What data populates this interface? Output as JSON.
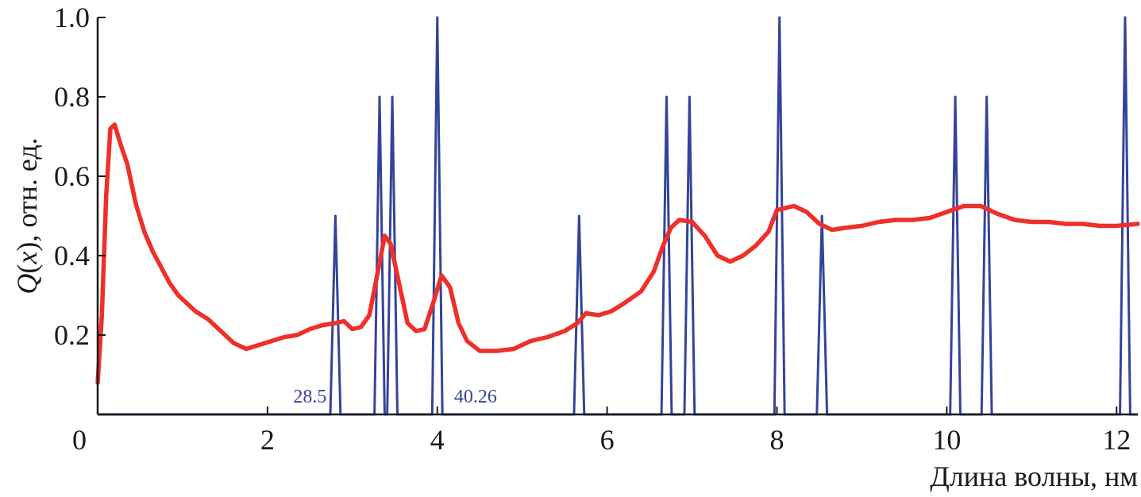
{
  "colors": {
    "q_curve": "#ee2f2a",
    "peaks": "#34439a",
    "axis": "#1a1a1a"
  },
  "chart_data": {
    "type": "line",
    "xlabel": "Длина волны, нм",
    "ylabel_prefix": "Q",
    "ylabel_var": "x",
    "ylabel_suffix": ", отн. ед.",
    "xlim": [
      0,
      12.25
    ],
    "ylim": [
      0,
      1.0
    ],
    "x_ticks": [
      0,
      2,
      4,
      6,
      8,
      10,
      12
    ],
    "x_tick_labels": [
      "0",
      "2",
      "4",
      "6",
      "8",
      "10",
      "12"
    ],
    "y_ticks": [
      0.2,
      0.4,
      0.6,
      0.8,
      1.0
    ],
    "y_tick_labels": [
      "0.2",
      "0.4",
      "0.6",
      "0.8",
      "1.0"
    ],
    "grid": false,
    "series": [
      {
        "kind": "smooth-line",
        "color": "#ee2f2a",
        "points": [
          [
            0.0,
            0.08
          ],
          [
            0.05,
            0.25
          ],
          [
            0.1,
            0.55
          ],
          [
            0.15,
            0.72
          ],
          [
            0.2,
            0.73
          ],
          [
            0.27,
            0.68
          ],
          [
            0.35,
            0.63
          ],
          [
            0.45,
            0.53
          ],
          [
            0.55,
            0.46
          ],
          [
            0.65,
            0.41
          ],
          [
            0.75,
            0.37
          ],
          [
            0.85,
            0.33
          ],
          [
            0.95,
            0.3
          ],
          [
            1.05,
            0.28
          ],
          [
            1.15,
            0.26
          ],
          [
            1.3,
            0.24
          ],
          [
            1.45,
            0.21
          ],
          [
            1.6,
            0.18
          ],
          [
            1.75,
            0.165
          ],
          [
            1.9,
            0.175
          ],
          [
            2.05,
            0.185
          ],
          [
            2.2,
            0.195
          ],
          [
            2.35,
            0.2
          ],
          [
            2.5,
            0.215
          ],
          [
            2.65,
            0.225
          ],
          [
            2.8,
            0.23
          ],
          [
            2.9,
            0.235
          ],
          [
            3.0,
            0.215
          ],
          [
            3.1,
            0.22
          ],
          [
            3.2,
            0.25
          ],
          [
            3.3,
            0.36
          ],
          [
            3.38,
            0.45
          ],
          [
            3.45,
            0.43
          ],
          [
            3.55,
            0.33
          ],
          [
            3.65,
            0.23
          ],
          [
            3.75,
            0.21
          ],
          [
            3.85,
            0.215
          ],
          [
            3.95,
            0.28
          ],
          [
            4.05,
            0.35
          ],
          [
            4.15,
            0.32
          ],
          [
            4.25,
            0.23
          ],
          [
            4.35,
            0.185
          ],
          [
            4.5,
            0.16
          ],
          [
            4.7,
            0.16
          ],
          [
            4.9,
            0.165
          ],
          [
            5.1,
            0.185
          ],
          [
            5.3,
            0.195
          ],
          [
            5.5,
            0.21
          ],
          [
            5.65,
            0.23
          ],
          [
            5.75,
            0.255
          ],
          [
            5.9,
            0.25
          ],
          [
            6.05,
            0.26
          ],
          [
            6.2,
            0.28
          ],
          [
            6.4,
            0.31
          ],
          [
            6.55,
            0.36
          ],
          [
            6.65,
            0.42
          ],
          [
            6.75,
            0.47
          ],
          [
            6.85,
            0.49
          ],
          [
            7.0,
            0.485
          ],
          [
            7.15,
            0.45
          ],
          [
            7.3,
            0.4
          ],
          [
            7.45,
            0.385
          ],
          [
            7.6,
            0.4
          ],
          [
            7.75,
            0.425
          ],
          [
            7.9,
            0.46
          ],
          [
            8.0,
            0.515
          ],
          [
            8.1,
            0.52
          ],
          [
            8.2,
            0.525
          ],
          [
            8.35,
            0.51
          ],
          [
            8.5,
            0.48
          ],
          [
            8.65,
            0.465
          ],
          [
            8.8,
            0.47
          ],
          [
            9.0,
            0.475
          ],
          [
            9.2,
            0.485
          ],
          [
            9.4,
            0.49
          ],
          [
            9.6,
            0.49
          ],
          [
            9.8,
            0.495
          ],
          [
            10.0,
            0.51
          ],
          [
            10.2,
            0.525
          ],
          [
            10.4,
            0.525
          ],
          [
            10.6,
            0.505
          ],
          [
            10.8,
            0.49
          ],
          [
            11.0,
            0.485
          ],
          [
            11.2,
            0.485
          ],
          [
            11.4,
            0.48
          ],
          [
            11.6,
            0.48
          ],
          [
            11.8,
            0.475
          ],
          [
            12.0,
            0.475
          ],
          [
            12.25,
            0.48
          ]
        ]
      },
      {
        "kind": "impulses",
        "color": "#34439a",
        "peaks": [
          {
            "x": 2.8,
            "y": 0.5
          },
          {
            "x": 3.32,
            "y": 0.8
          },
          {
            "x": 3.47,
            "y": 0.8
          },
          {
            "x": 4.0,
            "y": 1.0
          },
          {
            "x": 5.67,
            "y": 0.5
          },
          {
            "x": 6.7,
            "y": 0.8
          },
          {
            "x": 6.97,
            "y": 0.8
          },
          {
            "x": 8.03,
            "y": 1.0
          },
          {
            "x": 8.53,
            "y": 0.5
          },
          {
            "x": 10.1,
            "y": 0.8
          },
          {
            "x": 10.47,
            "y": 0.8
          },
          {
            "x": 12.1,
            "y": 1.0
          }
        ]
      }
    ],
    "annotations": [
      {
        "text": "28.5",
        "x": 2.5,
        "y": 0.03
      },
      {
        "text": "40.26",
        "x": 4.45,
        "y": 0.03
      }
    ]
  }
}
